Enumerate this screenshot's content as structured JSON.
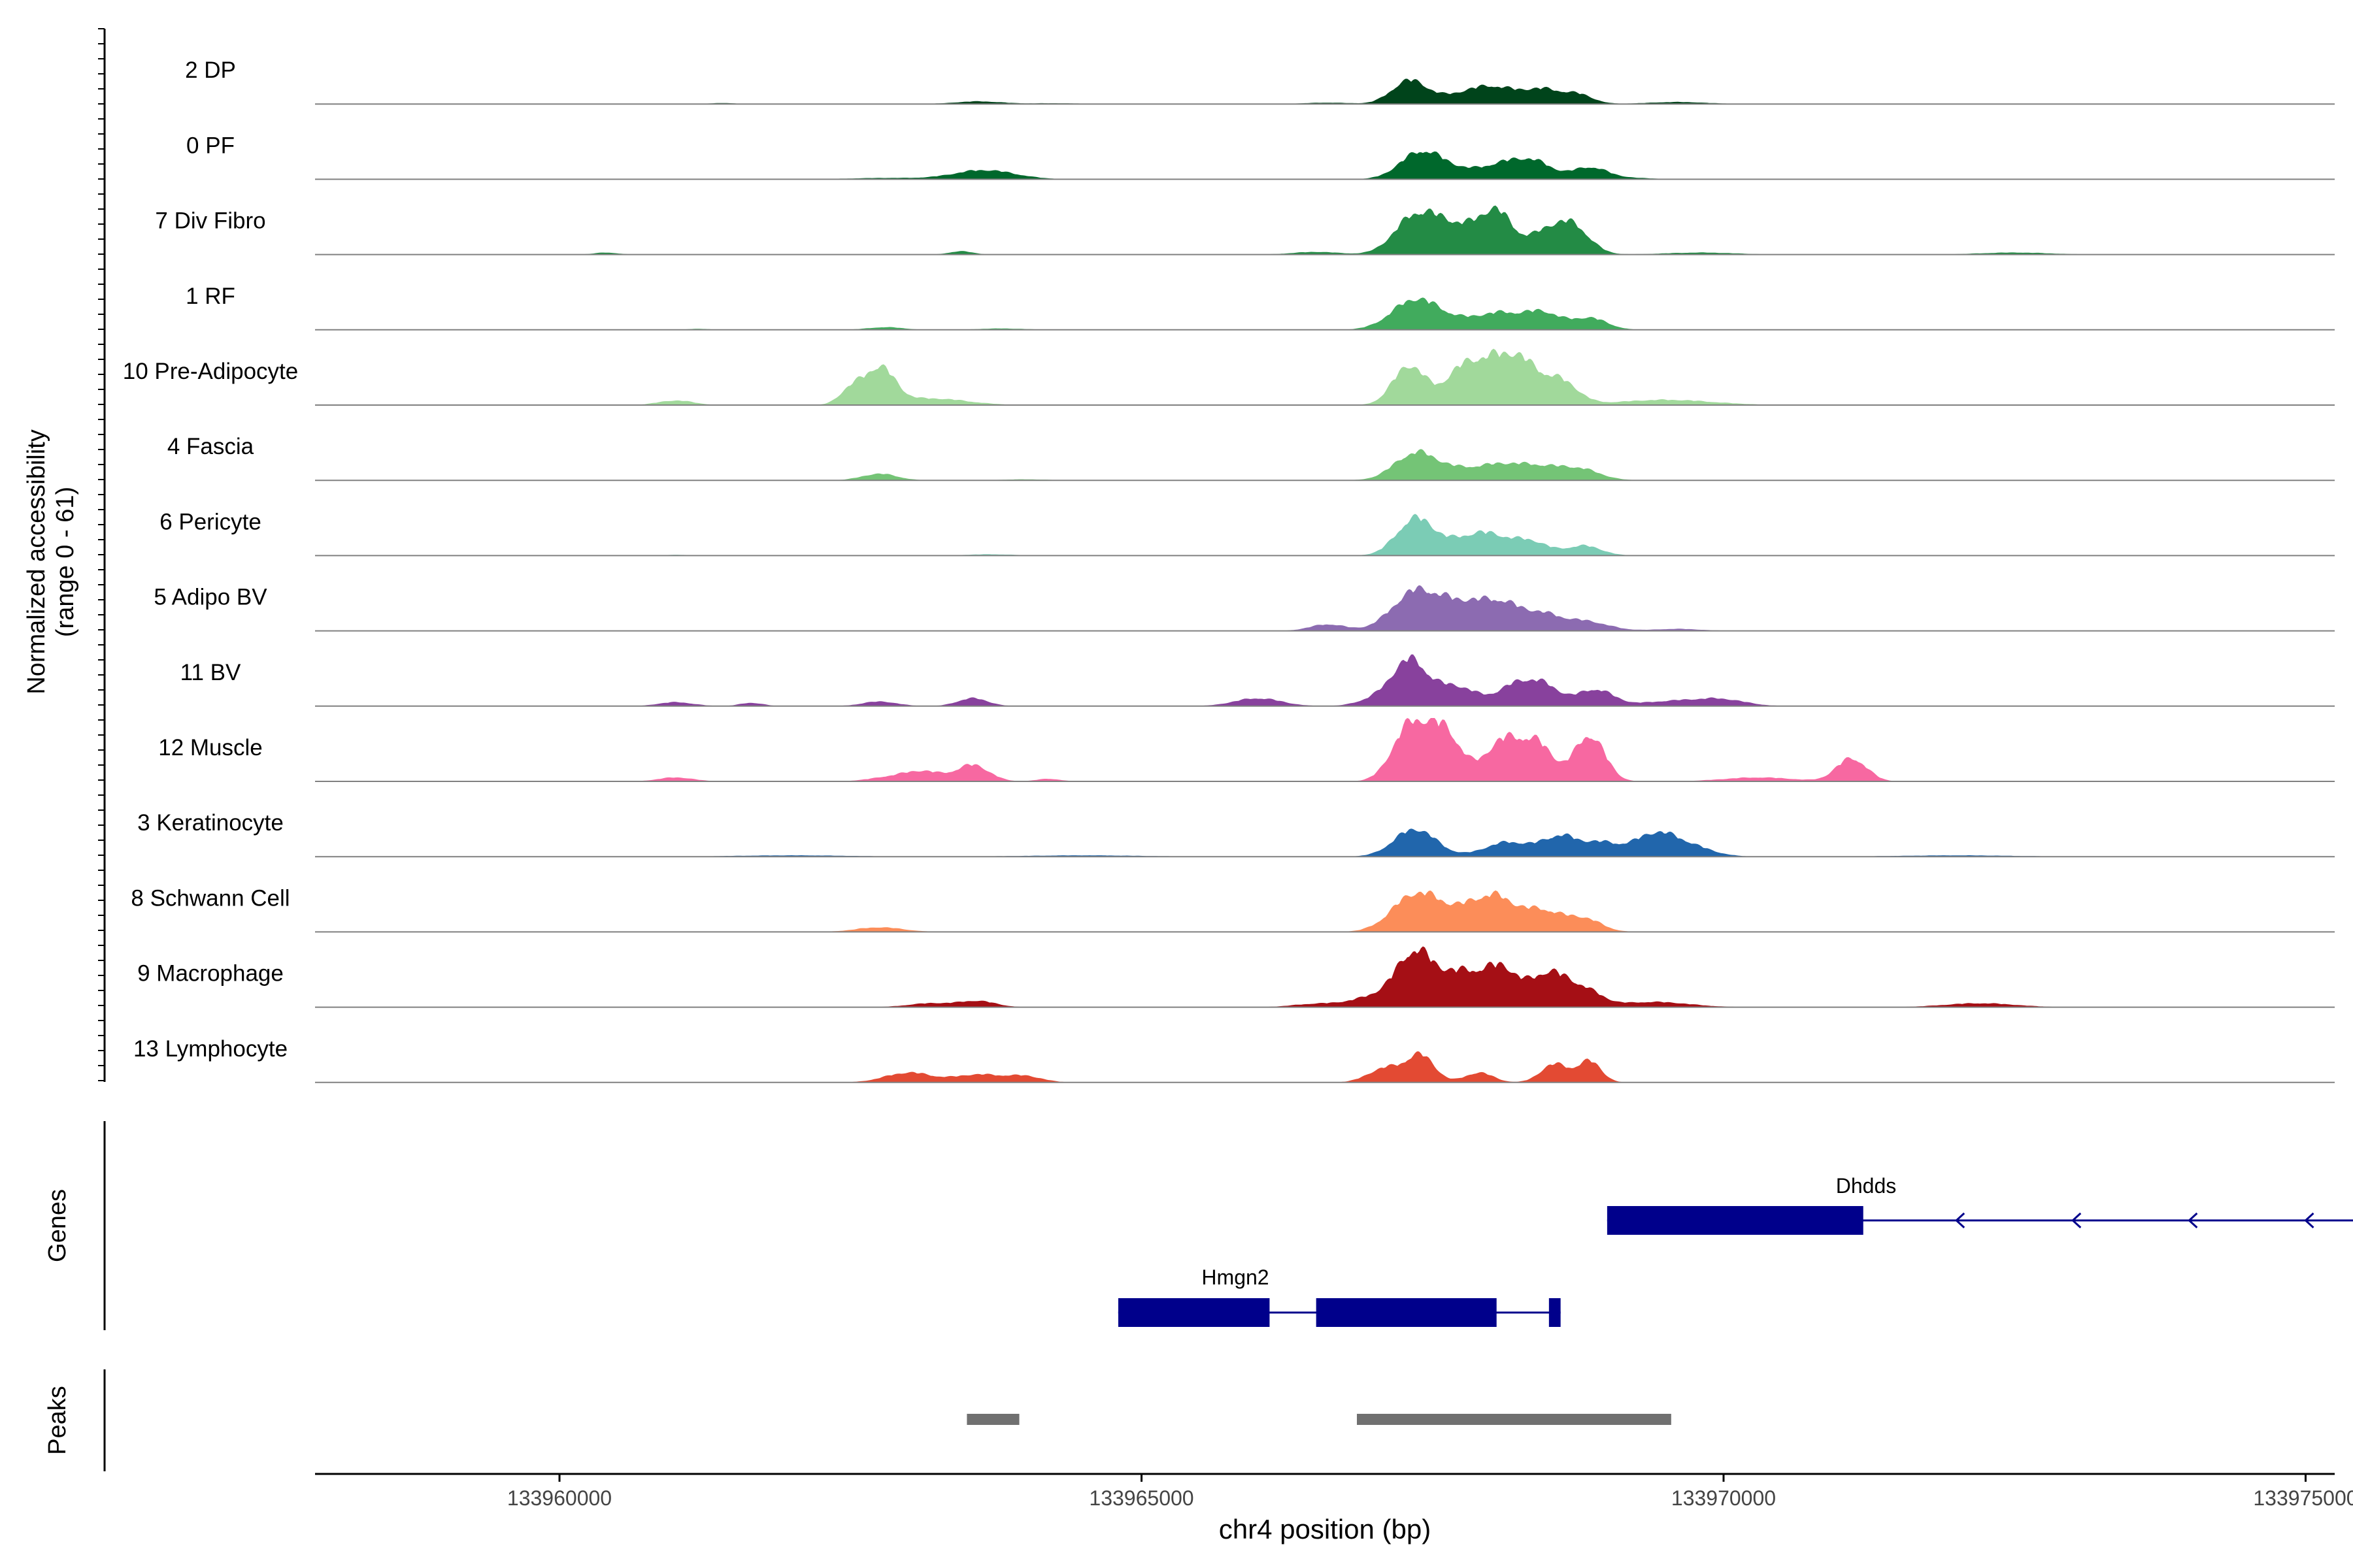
{
  "chart_data": {
    "type": "area",
    "title": "",
    "xlabel": "chr4 position (bp)",
    "ylabel_line1": "Normalized accessibility",
    "ylabel_line2": "(range 0 - 61)",
    "ylim": [
      0,
      61
    ],
    "xlim": [
      133957900,
      133975250
    ],
    "x_ticks": [
      133960000,
      133965000,
      133970000,
      133975000
    ],
    "x_tick_labels": [
      "133960000",
      "133965000",
      "133970000",
      "133975000"
    ],
    "series": [
      {
        "name": "2 DP",
        "color": "#00441B",
        "peaks": [
          [
            133967300,
            35,
            150
          ],
          [
            133968050,
            22,
            200
          ],
          [
            133968450,
            20,
            150
          ],
          [
            133968750,
            14,
            130
          ],
          [
            133967750,
            12,
            220
          ],
          [
            133963600,
            4,
            200
          ],
          [
            133969600,
            3,
            250
          ],
          [
            133961400,
            1.5,
            100
          ],
          [
            133966600,
            2,
            200
          ],
          [
            133964250,
            1.2,
            200
          ]
        ]
      },
      {
        "name": "0 PF",
        "color": "#00682C",
        "peaks": [
          [
            133967400,
            40,
            180
          ],
          [
            133968150,
            22,
            180
          ],
          [
            133968400,
            20,
            150
          ],
          [
            133968850,
            18,
            150
          ],
          [
            133967750,
            12,
            220
          ],
          [
            133963650,
            14,
            260
          ],
          [
            133962800,
            2,
            300
          ],
          [
            133969200,
            2,
            200
          ]
        ]
      },
      {
        "name": "7 Div Fibro",
        "color": "#238B45",
        "peaks": [
          [
            133967350,
            55,
            180
          ],
          [
            133968050,
            60,
            140
          ],
          [
            133967700,
            40,
            200
          ],
          [
            133968700,
            42,
            150
          ],
          [
            133968450,
            28,
            150
          ],
          [
            133963450,
            5,
            100
          ],
          [
            133966500,
            4,
            200
          ],
          [
            133969800,
            3,
            300
          ],
          [
            133972500,
            3,
            300
          ],
          [
            133960400,
            3,
            100
          ]
        ]
      },
      {
        "name": "1 RF",
        "color": "#41AB5D",
        "peaks": [
          [
            133967350,
            45,
            200
          ],
          [
            133968100,
            22,
            180
          ],
          [
            133968450,
            25,
            150
          ],
          [
            133968850,
            18,
            150
          ],
          [
            133967750,
            12,
            220
          ],
          [
            133962800,
            4,
            150
          ],
          [
            133963800,
            2,
            200
          ],
          [
            133961200,
            1.5,
            100
          ]
        ]
      },
      {
        "name": "10 Pre-Adipocyte",
        "color": "#A1D99B",
        "peaks": [
          [
            133967300,
            60,
            140
          ],
          [
            133967750,
            50,
            150
          ],
          [
            133968250,
            62,
            160
          ],
          [
            133968600,
            35,
            150
          ],
          [
            133968000,
            45,
            150
          ],
          [
            133962750,
            55,
            130
          ],
          [
            133962500,
            22,
            100
          ],
          [
            133963200,
            10,
            300
          ],
          [
            133961000,
            7,
            150
          ],
          [
            133969500,
            8,
            400
          ]
        ]
      },
      {
        "name": "4 Fascia",
        "color": "#74C476",
        "peaks": [
          [
            133967350,
            40,
            180
          ],
          [
            133968150,
            22,
            200
          ],
          [
            133968750,
            18,
            180
          ],
          [
            133967750,
            15,
            220
          ],
          [
            133968450,
            12,
            150
          ],
          [
            133962750,
            10,
            150
          ],
          [
            133964000,
            1.5,
            200
          ]
        ]
      },
      {
        "name": "6 Pericyte",
        "color": "#7BCCB5",
        "peaks": [
          [
            133967350,
            55,
            160
          ],
          [
            133968000,
            25,
            180
          ],
          [
            133968350,
            20,
            150
          ],
          [
            133968800,
            15,
            150
          ],
          [
            133967750,
            18,
            200
          ],
          [
            133963700,
            2,
            200
          ],
          [
            133961000,
            1.2,
            100
          ]
        ]
      },
      {
        "name": "5 Adipo BV",
        "color": "#8C6BB1",
        "peaks": [
          [
            133967350,
            58,
            200
          ],
          [
            133967750,
            35,
            200
          ],
          [
            133968100,
            38,
            180
          ],
          [
            133968450,
            20,
            150
          ],
          [
            133968800,
            15,
            200
          ],
          [
            133966600,
            10,
            150
          ],
          [
            133969600,
            3,
            200
          ]
        ]
      },
      {
        "name": "11 BV",
        "color": "#88419D",
        "peaks": [
          [
            133967300,
            68,
            150
          ],
          [
            133967700,
            30,
            180
          ],
          [
            133968200,
            28,
            150
          ],
          [
            133968450,
            30,
            150
          ],
          [
            133968900,
            25,
            150
          ],
          [
            133967000,
            10,
            150
          ],
          [
            133966000,
            12,
            200
          ],
          [
            133963550,
            12,
            130
          ],
          [
            133962750,
            7,
            150
          ],
          [
            133961000,
            6,
            150
          ],
          [
            133961650,
            5,
            100
          ],
          [
            133969600,
            8,
            300
          ],
          [
            133970000,
            8,
            200
          ]
        ]
      },
      {
        "name": "12 Muscle",
        "color": "#F768A1",
        "peaks": [
          [
            133967300,
            80,
            150
          ],
          [
            133967600,
            75,
            150
          ],
          [
            133968100,
            60,
            150
          ],
          [
            133968400,
            55,
            140
          ],
          [
            133968850,
            70,
            130
          ],
          [
            133963550,
            25,
            140
          ],
          [
            133963150,
            12,
            150
          ],
          [
            133971100,
            35,
            130
          ],
          [
            133962900,
            8,
            200
          ],
          [
            133964200,
            4,
            100
          ],
          [
            133961000,
            6,
            150
          ],
          [
            133970300,
            6,
            300
          ]
        ]
      },
      {
        "name": "3 Keratinocyte",
        "color": "#2166AC",
        "peaks": [
          [
            133967350,
            42,
            180
          ],
          [
            133968150,
            22,
            200
          ],
          [
            133968600,
            30,
            150
          ],
          [
            133968950,
            20,
            150
          ],
          [
            133969400,
            32,
            180
          ],
          [
            133969700,
            15,
            200
          ],
          [
            133962000,
            2,
            500
          ],
          [
            133964500,
            2,
            500
          ],
          [
            133972000,
            2,
            500
          ]
        ]
      },
      {
        "name": "8 Schwann Cell",
        "color": "#FC8D59",
        "peaks": [
          [
            133967350,
            55,
            200
          ],
          [
            133968050,
            45,
            180
          ],
          [
            133968450,
            30,
            160
          ],
          [
            133968800,
            20,
            150
          ],
          [
            133967750,
            25,
            220
          ],
          [
            133962750,
            7,
            200
          ]
        ]
      },
      {
        "name": "9 Macrophage",
        "color": "#A50F15",
        "peaks": [
          [
            133967350,
            80,
            160
          ],
          [
            133967750,
            50,
            180
          ],
          [
            133968100,
            55,
            150
          ],
          [
            133968500,
            50,
            150
          ],
          [
            133968800,
            25,
            150
          ],
          [
            133967000,
            15,
            200
          ],
          [
            133963600,
            9,
            150
          ],
          [
            133963200,
            6,
            200
          ],
          [
            133966500,
            5,
            200
          ],
          [
            133969400,
            8,
            300
          ],
          [
            133972200,
            6,
            300
          ]
        ]
      },
      {
        "name": "13 Lymphocyte",
        "color": "#E34A33",
        "peaks": [
          [
            133967400,
            40,
            120
          ],
          [
            133967100,
            22,
            150
          ],
          [
            133968550,
            28,
            120
          ],
          [
            133968850,
            32,
            100
          ],
          [
            133967900,
            15,
            120
          ],
          [
            133963000,
            15,
            200
          ],
          [
            133963600,
            12,
            200
          ],
          [
            133964000,
            9,
            150
          ]
        ]
      }
    ],
    "genes": [
      {
        "name": "Dhdds",
        "strand": "-",
        "line": [
          133969000,
          133975500
        ],
        "exons": [
          [
            133969000,
            133971200
          ]
        ],
        "arrows": [
          133972000,
          133973000,
          133974000,
          133975000
        ]
      },
      {
        "name": "Hmgn2",
        "strand": "+",
        "line": [
          133964800,
          133968600
        ],
        "exons": [
          [
            133964800,
            133966100
          ],
          [
            133966500,
            133968050
          ],
          [
            133968500,
            133968600
          ]
        ],
        "arrows": []
      }
    ],
    "peaks_track": [
      [
        133963500,
        133963950
      ],
      [
        133966850,
        133969550
      ]
    ],
    "track_labels": {
      "genes": "Genes",
      "peaks": "Peaks"
    },
    "colors": {
      "axis": "#000000",
      "baseline": "#808080",
      "gene": "#00008B",
      "peak": "#707070"
    }
  }
}
